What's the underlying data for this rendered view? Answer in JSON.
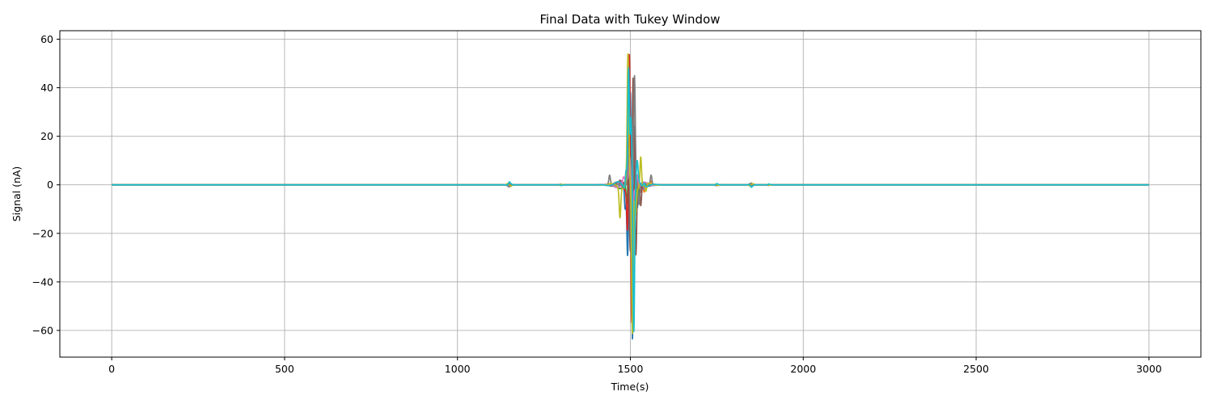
{
  "chart_data": {
    "type": "line",
    "title": "Final Data with Tukey Window",
    "xlabel": "Time(s)",
    "ylabel": "Signal (nA)",
    "xlim": [
      -150,
      3150
    ],
    "ylim": [
      -71,
      63.5
    ],
    "grid": true,
    "x_ticks": [
      0,
      500,
      1000,
      1500,
      2000,
      2500,
      3000
    ],
    "x_tick_labels": [
      "0",
      "500",
      "1000",
      "1500",
      "2000",
      "2500",
      "3000"
    ],
    "y_ticks": [
      60,
      40,
      20,
      0,
      -20,
      -40,
      -60
    ],
    "y_tick_labels": [
      "60",
      "40",
      "20",
      "0",
      "−20",
      "−40",
      "−60"
    ],
    "x_range": [
      0,
      3000
    ],
    "series": [
      {
        "color": "#1f77b4",
        "peaks": [
          [
            1485,
            -12
          ],
          [
            1492,
            -31
          ],
          [
            1500,
            40
          ],
          [
            1506,
            -64
          ],
          [
            1512,
            28
          ],
          [
            1520,
            -8
          ]
        ]
      },
      {
        "color": "#ff7f0e",
        "peaks": [
          [
            1488,
            6
          ],
          [
            1496,
            22
          ],
          [
            1503,
            -35
          ],
          [
            1510,
            15
          ],
          [
            1540,
            -3
          ],
          [
            1560,
            1.5
          ]
        ]
      },
      {
        "color": "#2ca02c",
        "peaks": [
          [
            1490,
            -10
          ],
          [
            1497,
            34
          ],
          [
            1504,
            -44
          ],
          [
            1511,
            20
          ],
          [
            1522,
            -4
          ]
        ]
      },
      {
        "color": "#d62728",
        "peaks": [
          [
            1492,
            -20
          ],
          [
            1497,
            57
          ],
          [
            1504,
            -58
          ],
          [
            1512,
            18
          ],
          [
            1530,
            -3
          ]
        ]
      },
      {
        "color": "#9467bd",
        "peaks": [
          [
            1470,
            2
          ],
          [
            1494,
            8
          ],
          [
            1502,
            -18
          ],
          [
            1514,
            10
          ],
          [
            1540,
            -2
          ]
        ]
      },
      {
        "color": "#8c564b",
        "peaks": [
          [
            1492,
            12
          ],
          [
            1500,
            -25
          ],
          [
            1508,
            45
          ],
          [
            1516,
            -30
          ],
          [
            1530,
            -10
          ]
        ]
      },
      {
        "color": "#e377c2",
        "peaks": [
          [
            1480,
            2
          ],
          [
            1498,
            10
          ],
          [
            1506,
            -14
          ],
          [
            1520,
            6
          ]
        ]
      },
      {
        "color": "#7f7f7f",
        "peaks": [
          [
            1440,
            4
          ],
          [
            1495,
            15
          ],
          [
            1503,
            -30
          ],
          [
            1512,
            45
          ],
          [
            1525,
            -8
          ],
          [
            1560,
            4
          ]
        ]
      },
      {
        "color": "#bcbd22",
        "peaks": [
          [
            1470,
            -12
          ],
          [
            1493,
            52
          ],
          [
            1506,
            -63
          ],
          [
            1515,
            -12
          ],
          [
            1530,
            13
          ],
          [
            1545,
            -3
          ]
        ]
      },
      {
        "color": "#17becf",
        "peaks": [
          [
            1488,
            8
          ],
          [
            1495,
            50
          ],
          [
            1502,
            28
          ],
          [
            1510,
            -62
          ],
          [
            1520,
            8
          ],
          [
            1540,
            1.5
          ]
        ]
      }
    ],
    "background_ripples": [
      [
        1150,
        1.5
      ],
      [
        1300,
        0.4
      ],
      [
        1750,
        0.6
      ],
      [
        1850,
        1.2
      ],
      [
        1900,
        0.4
      ]
    ]
  }
}
